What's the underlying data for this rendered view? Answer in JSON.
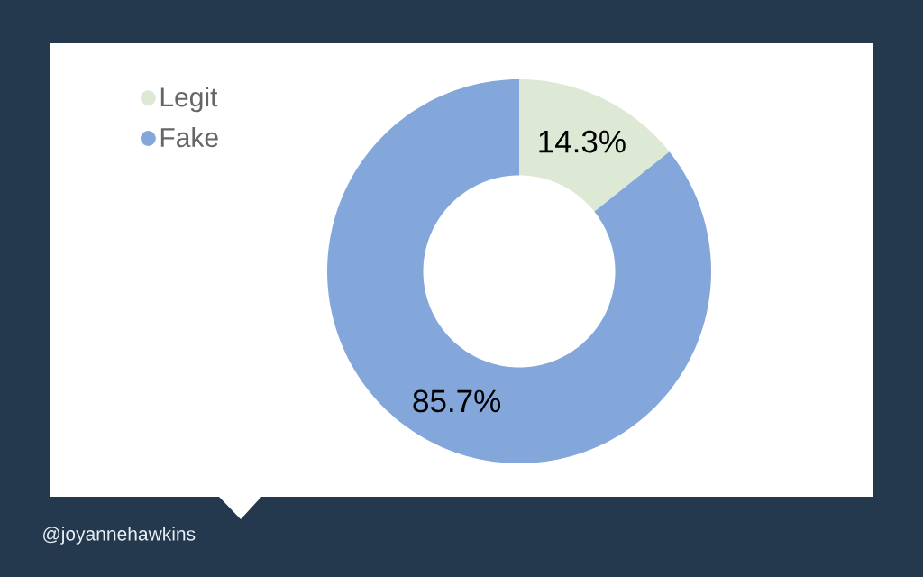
{
  "chart_data": {
    "type": "donut",
    "categories": [
      "Legit",
      "Fake"
    ],
    "values": [
      14.3,
      85.7
    ],
    "colors": [
      "#dde9d4",
      "#84a7db"
    ],
    "value_labels": [
      "14.3%",
      "85.7%"
    ],
    "legend": "top left",
    "annotations": [
      "@joyannehawkins"
    ]
  }
}
